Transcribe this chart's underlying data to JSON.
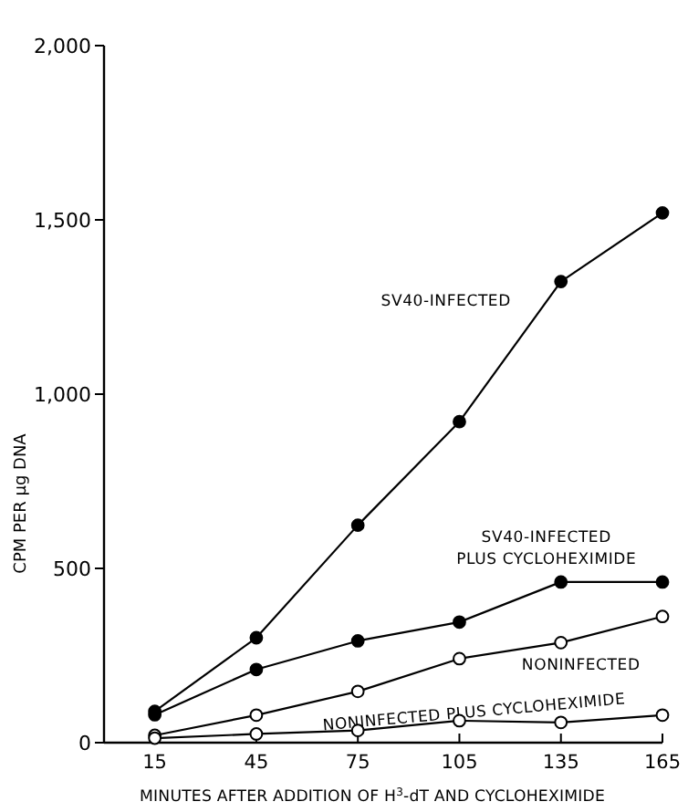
{
  "chart_data": {
    "type": "line",
    "xlabel": "MINUTES AFTER ADDITION OF H$^{3}$-dT AND CYCLOHEXIMIDE",
    "ylabel": "CPM PER μg DNA",
    "x": [
      15,
      45,
      75,
      105,
      135,
      165
    ],
    "xlim": [
      0,
      165
    ],
    "xticks": [
      15,
      45,
      75,
      105,
      135,
      165
    ],
    "ylim": [
      0,
      2000
    ],
    "yticks": [
      0,
      500,
      {
        "value": 1000,
        "label": "1,000"
      },
      {
        "value": 1500,
        "label": "1,500"
      },
      {
        "value": 2000,
        "label": "2,000"
      }
    ],
    "grid": false,
    "marker": "circle",
    "line_style": "solid",
    "series": [
      {
        "name": "SV40-INFECTED",
        "color": "#000000",
        "values": [
          90,
          301,
          624,
          921,
          1323,
          1520
        ]
      },
      {
        "name": "SV40-INFECTED\nPLUS CYCLOHEXIMIDE",
        "color": "#000000",
        "values": [
          80,
          210,
          292,
          346,
          461,
          461
        ]
      },
      {
        "name": "NONINFECTED",
        "color": "#ffffff",
        "values": [
          21,
          79,
          147,
          241,
          287,
          362
        ]
      },
      {
        "name": "NONINFECTED PLUS CYCLOHEXIMIDE",
        "color": "#ffffff",
        "values": [
          13,
          25,
          35,
          63,
          58,
          79
        ]
      }
    ]
  }
}
